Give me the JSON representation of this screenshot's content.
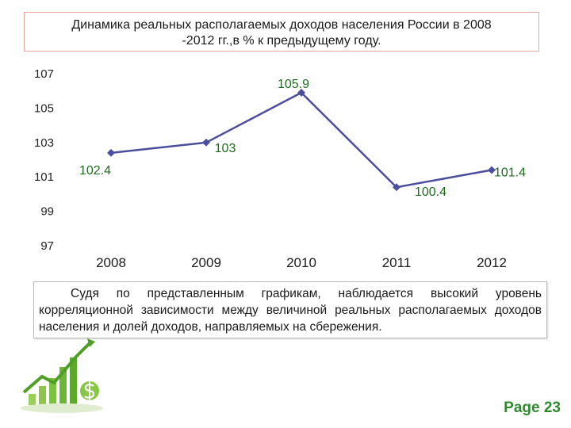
{
  "header": {
    "title": "Динамика реальных располагаемых доходов населения России в 2008\n-2012 гг.,в % к предыдущему году."
  },
  "chart_data": {
    "type": "line",
    "title": "Динамика реальных располагаемых доходов населения России в 2008 -2012 гг.,в % к предыдущему году.",
    "categories": [
      "2008",
      "2009",
      "2010",
      "2011",
      "2012"
    ],
    "series": [
      {
        "values": [
          102.4,
          103,
          105.9,
          100.4,
          101.4
        ]
      }
    ],
    "data_labels": [
      "102.4",
      "103",
      "105.9",
      "100.4",
      "101.4"
    ],
    "ylim": [
      97,
      107
    ],
    "yticks": [
      "107",
      "105",
      "103",
      "101",
      "99",
      "97"
    ],
    "grid": false,
    "legend": "none",
    "colors": {
      "line": "#4a4e9c",
      "labels": "#1e6b1e",
      "axis_text": "#222222",
      "tick_labels_x": "#1a1a1a"
    }
  },
  "note": {
    "text": "Судя по представленным графикам, наблюдается высокий уровень корреляционной зависимости между величиной реальных располагаемых доходов населения и долей доходов, направляемых на сбережения."
  },
  "footer": {
    "page_label": "Page 23"
  },
  "decor": {
    "icon": "growth-bar-chart-with-dollar-icon",
    "accent": "#7cc242"
  }
}
